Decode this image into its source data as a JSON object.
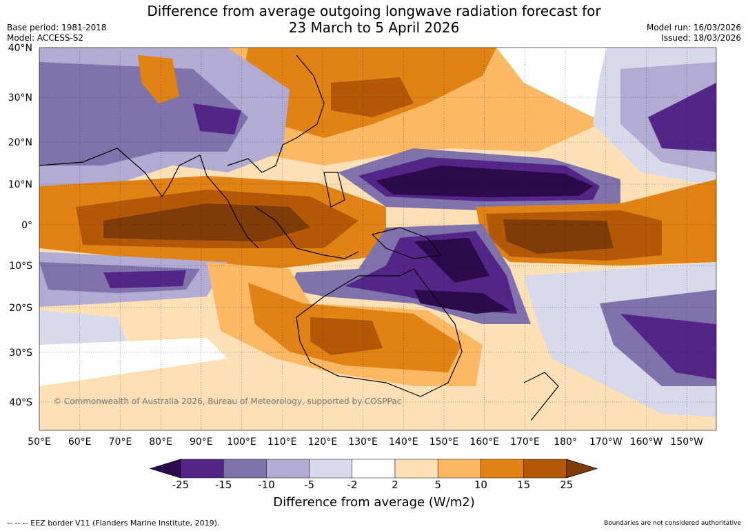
{
  "title": {
    "line1": "Difference from average outgoing longwave radiation forecast for",
    "line2": "23 March to 5 April 2026"
  },
  "meta_left": {
    "base_period": "Base period: 1981-2018",
    "model": "Model: ACCESS-S2"
  },
  "meta_right": {
    "model_run": "Model run: 16/03/2026",
    "issued": "Issued: 18/03/2026"
  },
  "map": {
    "lat_labels": [
      "40°N",
      "30°N",
      "20°N",
      "10°N",
      "0°",
      "10°S",
      "20°S",
      "30°S",
      "40°S"
    ],
    "lon_labels": [
      "50°E",
      "60°E",
      "70°E",
      "80°E",
      "90°E",
      "100°E",
      "110°E",
      "120°E",
      "130°E",
      "140°E",
      "150°E",
      "160°E",
      "170°E",
      "180°",
      "170°W",
      "160°W",
      "150°W"
    ],
    "copyright": "© Commonwealth of Australia 2026, Bureau of Meteorology, supported by COSPPac"
  },
  "colorbar": {
    "ticks": [
      "-25",
      "-15",
      "-10",
      "-5",
      "-2",
      "2",
      "5",
      "10",
      "15",
      "25"
    ],
    "colors": [
      "#2d0a4b",
      "#542588",
      "#8073ac",
      "#b2abd2",
      "#d8daeb",
      "#ffffff",
      "#fee0b6",
      "#fdb863",
      "#e08214",
      "#b35806",
      "#7f3b08"
    ],
    "label": "Difference from average (W/m2)"
  },
  "footer": {
    "eez": "--  --  -- EEZ border V11 (Flanders Marine Institute, 2019).",
    "disclaimer": "Boundaries are not considered authoritative"
  }
}
